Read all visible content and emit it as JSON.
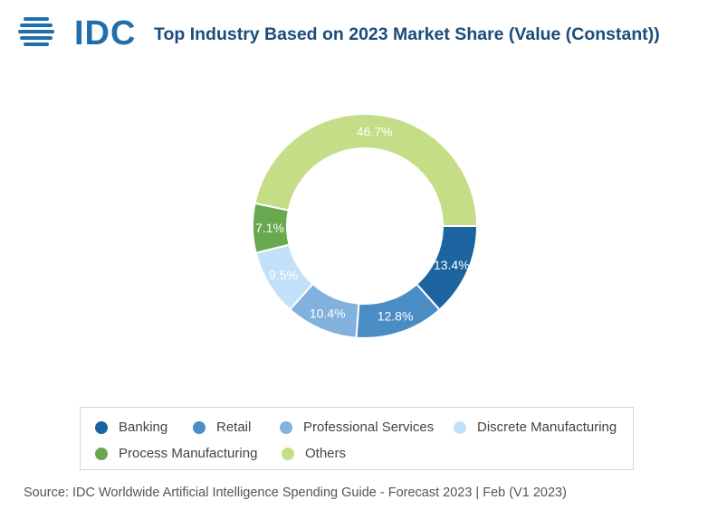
{
  "header": {
    "logo_text": "IDC",
    "title": "Top Industry Based on 2023 Market Share (Value (Constant))"
  },
  "chart_data": {
    "type": "pie",
    "variant": "donut",
    "title": "Top Industry Based on 2023 Market Share (Value (Constant))",
    "categories": [
      "Banking",
      "Retail",
      "Professional Services",
      "Discrete Manufacturing",
      "Process Manufacturing",
      "Others"
    ],
    "values": [
      13.4,
      12.8,
      10.4,
      9.5,
      7.1,
      46.7
    ],
    "labels": [
      "13.4%",
      "12.8%",
      "10.4%",
      "9.5%",
      "7.1%",
      "46.7%"
    ],
    "colors": [
      "#1c64a0",
      "#4a8cc4",
      "#82b1dd",
      "#c2e1f8",
      "#6aa84f",
      "#c5dd87"
    ],
    "legend_position": "bottom"
  },
  "legend": {
    "items": [
      "Banking",
      "Retail",
      "Professional Services",
      "Discrete Manufacturing",
      "Process Manufacturing",
      "Others"
    ]
  },
  "footer": {
    "source": "Source: IDC Worldwide Artificial Intelligence Spending Guide - Forecast 2023 | Feb (V1 2023)"
  }
}
